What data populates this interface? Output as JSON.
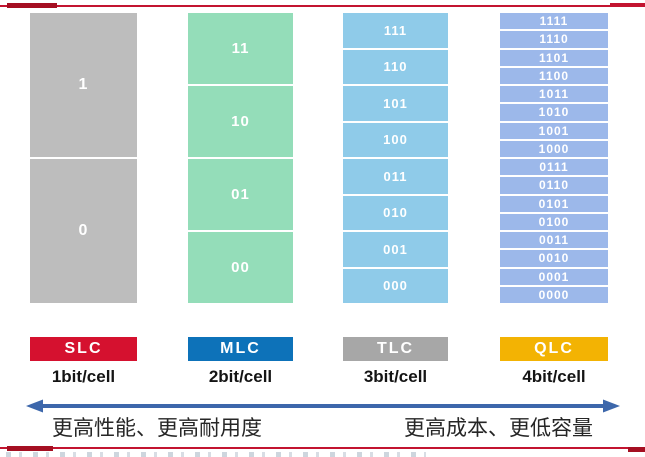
{
  "figure": {
    "accent_rule_color": "#c31430",
    "accent_rule_dark": "#a50f22",
    "columns": [
      {
        "id": "slc",
        "badge": "SLC",
        "bits": "1bit/cell",
        "badge_color": "#d5112f",
        "cell_color": "#bdbdbd",
        "cells": [
          "1",
          "0"
        ]
      },
      {
        "id": "mlc",
        "badge": "MLC",
        "bits": "2bit/cell",
        "badge_color": "#0d72b9",
        "cell_color": "#94ddb9",
        "cells": [
          "11",
          "10",
          "01",
          "00"
        ]
      },
      {
        "id": "tlc",
        "badge": "TLC",
        "bits": "3bit/cell",
        "badge_color": "#a7a7a7",
        "cell_color": "#8fcbe9",
        "cells": [
          "111",
          "110",
          "101",
          "100",
          "011",
          "010",
          "001",
          "000"
        ]
      },
      {
        "id": "qlc",
        "badge": "QLC",
        "bits": "4bit/cell",
        "badge_color": "#f3b303",
        "cell_color": "#9cb8ea",
        "cells": [
          "1111",
          "1110",
          "1101",
          "1100",
          "1011",
          "1010",
          "1001",
          "1000",
          "0111",
          "0110",
          "0101",
          "0100",
          "0011",
          "0010",
          "0001",
          "0000"
        ]
      }
    ],
    "tradeoff": {
      "left_label": "更高性能、更高耐用度",
      "right_label": "更高成本、更低容量",
      "arrow_color": "#3d67ab"
    }
  }
}
